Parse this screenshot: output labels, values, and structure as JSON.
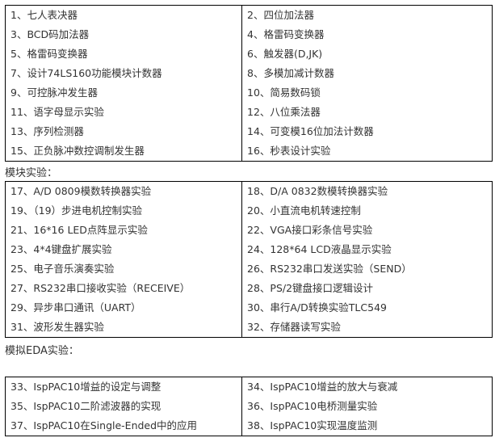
{
  "sections": [
    {
      "heading": "",
      "items": [
        "1、七人表决器",
        "2、四位加法器",
        "3、BCD码加法器",
        "4、格雷码变换器",
        "5、格雷码变换器",
        "6、触发器(D,JK)",
        "7、设计74LS160功能模块计数器",
        "8、多模加减计数器",
        "9、可控脉冲发生器",
        "10、简易数码锁",
        "11、语字母显示实验",
        "12、八位乘法器",
        "13、序列检测器",
        "14、可变模16位加法计数器",
        "15、正负脉冲数控调制发生器",
        "16、秒表设计实验"
      ]
    },
    {
      "heading": "模块实验：",
      "items": [
        "17、A/D 0809模数转换器实验",
        "18、D/A 0832数模转换器实验",
        "19、（19）步进电机控制实验",
        "20、小直流电机转速控制",
        "21、16*16 LED点阵显示实验",
        "22、VGA接口彩条信号实验",
        "23、4*4键盘扩展实验",
        "24、128*64 LCD液晶显示实验",
        "25、电子音乐演奏实验",
        "26、RS232串口发送实验（SEND）",
        "27、RS232串口接收实验（RECEIVE）",
        "28、PS/2键盘接口逻辑设计",
        "29、异步串口通讯（UART）",
        "30、串行A/D转换实验TLC549",
        "31、波形发生器实验",
        "32、存储器读写实验"
      ]
    },
    {
      "heading": "模拟EDA实验：",
      "items": [
        "33、IspPAC10增益的设定与调整",
        "34、IspPAC10增益的放大与衰减",
        "35、IspPAC10二阶滤波器的实现",
        "36、IspPAC10电桥测量实验",
        "37、IspPAC10在Single-Ended中的应用",
        "38、IspPAC10实现温度监测"
      ]
    }
  ]
}
